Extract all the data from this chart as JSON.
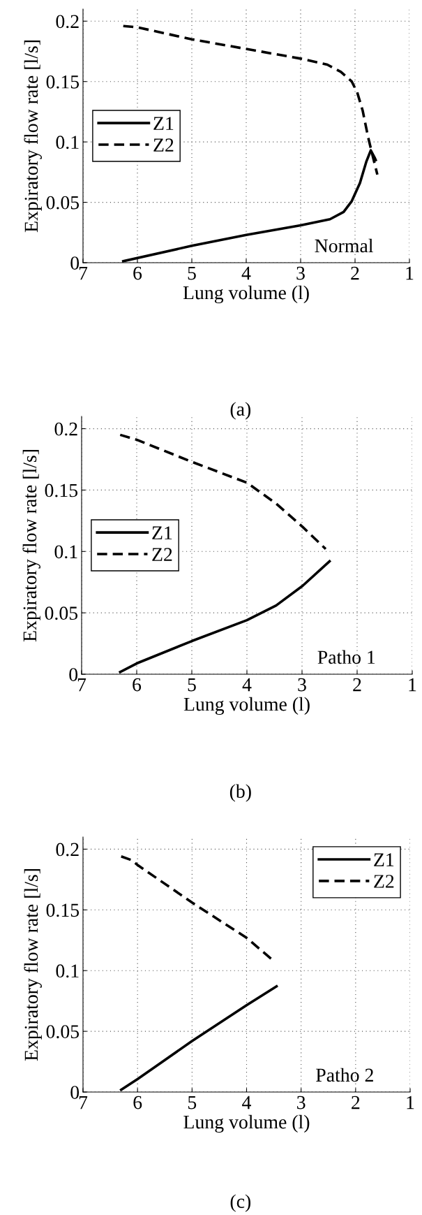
{
  "chart_data": [
    {
      "type": "line",
      "xlabel": "Lung volume (l)",
      "ylabel": "Expiratory flow rate [l/s]",
      "xlim": [
        7,
        1
      ],
      "ylim": [
        0,
        0.21
      ],
      "xticks": [
        7,
        6,
        5,
        4,
        3,
        2,
        1
      ],
      "yticks": [
        0,
        0.05,
        0.1,
        0.15,
        0.2
      ],
      "grid": true,
      "legend": "left",
      "annotations": [
        "Normal",
        "(a)"
      ],
      "series": [
        {
          "name": "Z1",
          "color": "#000000",
          "line_style": "solid",
          "x": [
            6.26,
            5.0,
            4.0,
            3.0,
            2.46,
            2.21,
            2.06,
            1.91,
            1.79,
            1.71,
            1.64,
            1.62
          ],
          "values": [
            0.0013,
            0.014,
            0.023,
            0.031,
            0.036,
            0.042,
            0.051,
            0.066,
            0.084,
            0.093,
            0.087,
            0.085
          ]
        },
        {
          "name": "Z2",
          "color": "#000000",
          "line_style": "dashed",
          "x": [
            6.26,
            6.01,
            5.0,
            4.0,
            3.0,
            2.51,
            2.26,
            2.06,
            1.96,
            1.86,
            1.76,
            1.69,
            1.59
          ],
          "values": [
            0.196,
            0.195,
            0.185,
            0.177,
            0.169,
            0.164,
            0.158,
            0.15,
            0.141,
            0.126,
            0.104,
            0.091,
            0.073
          ]
        }
      ]
    },
    {
      "type": "line",
      "xlabel": "Lung volume (l)",
      "ylabel": "Expiratory flow rate [l/s]",
      "xlim": [
        7,
        1
      ],
      "ylim": [
        0,
        0.21
      ],
      "xticks": [
        7,
        6,
        5,
        4,
        3,
        2,
        1
      ],
      "yticks": [
        0,
        0.05,
        0.1,
        0.15,
        0.2
      ],
      "grid": true,
      "legend": "left",
      "annotations": [
        "Patho 1",
        "(b)"
      ],
      "series": [
        {
          "name": "Z1",
          "color": "#000000",
          "line_style": "solid",
          "x": [
            6.3,
            6.0,
            5.0,
            4.0,
            3.47,
            2.99,
            2.5
          ],
          "values": [
            0.0018,
            0.0088,
            0.027,
            0.044,
            0.056,
            0.072,
            0.092
          ]
        },
        {
          "name": "Z2",
          "color": "#000000",
          "line_style": "dashed",
          "x": [
            6.3,
            6.0,
            5.0,
            4.0,
            3.47,
            2.99,
            2.57
          ],
          "values": [
            0.195,
            0.191,
            0.173,
            0.156,
            0.139,
            0.12,
            0.102
          ]
        }
      ]
    },
    {
      "type": "line",
      "xlabel": "Lung volume (l)",
      "ylabel": "Expiratory flow rate [l/s]",
      "xlim": [
        7,
        1
      ],
      "ylim": [
        0,
        0.21
      ],
      "xticks": [
        7,
        6,
        5,
        4,
        3,
        2,
        1
      ],
      "yticks": [
        0,
        0.05,
        0.1,
        0.15,
        0.2
      ],
      "grid": true,
      "legend": "top right",
      "annotations": [
        "Patho 2",
        "(c)"
      ],
      "series": [
        {
          "name": "Z1",
          "color": "#000000",
          "line_style": "solid",
          "x": [
            6.3,
            6.0,
            5.0,
            4.0,
            3.45
          ],
          "values": [
            0.0018,
            0.0106,
            0.042,
            0.0715,
            0.087
          ]
        },
        {
          "name": "Z2",
          "color": "#000000",
          "line_style": "dashed",
          "x": [
            6.3,
            6.11,
            6.0,
            5.0,
            4.0,
            3.53
          ],
          "values": [
            0.194,
            0.191,
            0.187,
            0.156,
            0.127,
            0.109
          ]
        }
      ]
    }
  ]
}
